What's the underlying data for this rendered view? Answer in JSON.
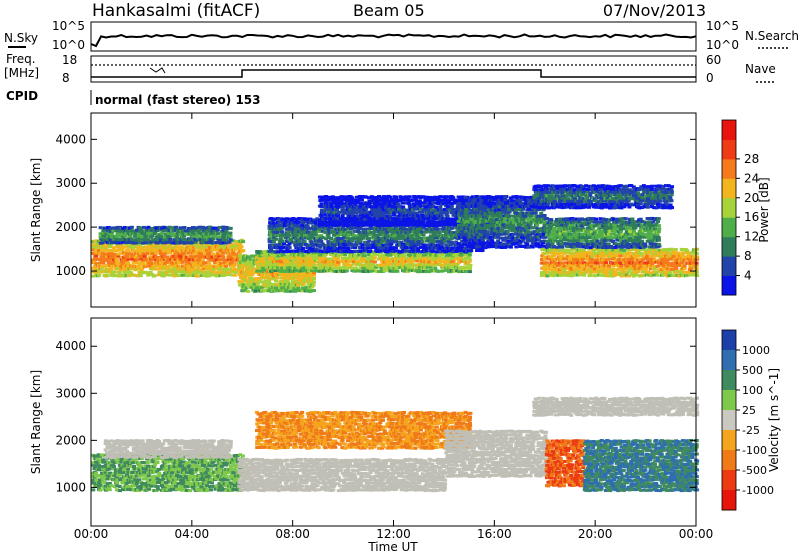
{
  "header": {
    "station": "Hankasalmi (fitACF)",
    "beam": "Beam 05",
    "date": "07/Nov/2013"
  },
  "noise_panel": {
    "left_label": "N.Sky",
    "right_label": "N.Search",
    "left_ticks": [
      "10^5",
      "10^0"
    ],
    "right_ticks": [
      "10^5",
      "10^0"
    ]
  },
  "freq_panel": {
    "left_label_1": "Freq.",
    "left_label_2": "[MHz]",
    "right_label": "Nave",
    "left_ticks": [
      "18",
      "8"
    ],
    "right_ticks": [
      "60",
      "0"
    ]
  },
  "cpid": {
    "label": "CPID",
    "mode": "normal (fast stereo) 153"
  },
  "colors": {
    "power_scale": [
      "#0a14e6",
      "#2244aa",
      "#2f7d5a",
      "#4fae4a",
      "#a6d23a",
      "#f2b51d",
      "#f47a1b",
      "#ef3b16",
      "#e8150f"
    ],
    "velocity_scale": [
      "#1d3fa8",
      "#2f6fb0",
      "#3f8a5e",
      "#7ec84a",
      "#c9c9c1",
      "#f5a41d",
      "#f07a18",
      "#ec3b12",
      "#e5150c"
    ],
    "ground_scatter": "#c0bfb6"
  },
  "chart_data": [
    {
      "type": "heatmap",
      "title": "Power [dB]",
      "xlabel": "Time UT",
      "ylabel": "Slant Range [km]",
      "x_ticks": [
        "00:00",
        "04:00",
        "08:00",
        "12:00",
        "16:00",
        "20:00",
        "00:00"
      ],
      "xlim_hours": [
        0,
        24
      ],
      "y_ticks": [
        1000,
        2000,
        3000,
        4000
      ],
      "ylim_km": [
        180,
        4600
      ],
      "colorbar_label": "Power [dB]",
      "colorbar_ticks": [
        4,
        8,
        12,
        16,
        20,
        24,
        28
      ],
      "bands": [
        {
          "t0": 0.0,
          "t1": 6.0,
          "r0": 850,
          "r1": 1700,
          "level": 28
        },
        {
          "t0": 0.3,
          "t1": 5.5,
          "r0": 1600,
          "r1": 2000,
          "level": 16
        },
        {
          "t0": 5.8,
          "t1": 8.8,
          "r0": 500,
          "r1": 1350,
          "level": 24
        },
        {
          "t0": 6.5,
          "t1": 15.0,
          "r0": 950,
          "r1": 1450,
          "level": 24
        },
        {
          "t0": 7.0,
          "t1": 15.5,
          "r0": 1400,
          "r1": 2200,
          "level": 12
        },
        {
          "t0": 9.0,
          "t1": 16.5,
          "r0": 2000,
          "r1": 2700,
          "level": 8
        },
        {
          "t0": 14.5,
          "t1": 18.0,
          "r0": 1500,
          "r1": 2700,
          "level": 12
        },
        {
          "t0": 17.5,
          "t1": 23.0,
          "r0": 2400,
          "r1": 2950,
          "level": 12
        },
        {
          "t0": 17.8,
          "t1": 24.0,
          "r0": 850,
          "r1": 1500,
          "level": 28
        },
        {
          "t0": 18.0,
          "t1": 22.5,
          "r0": 1500,
          "r1": 2200,
          "level": 16
        }
      ]
    },
    {
      "type": "heatmap",
      "title": "Velocity [m s^-1]",
      "xlabel": "Time UT",
      "ylabel": "Slant Range [km]",
      "x_ticks": [
        "00:00",
        "04:00",
        "08:00",
        "12:00",
        "16:00",
        "20:00",
        "00:00"
      ],
      "xlim_hours": [
        0,
        24
      ],
      "y_ticks": [
        1000,
        2000,
        3000,
        4000
      ],
      "ylim_km": [
        180,
        4600
      ],
      "colorbar_label": "Velocity [m s^-1]",
      "colorbar_ticks": [
        "1000",
        "500",
        "100",
        "25",
        "-25",
        "-100",
        "-500",
        "-1000"
      ],
      "bands": [
        {
          "t0": 0.0,
          "t1": 6.0,
          "r0": 900,
          "r1": 1700,
          "level": 100
        },
        {
          "t0": 0.5,
          "t1": 5.5,
          "r0": 1600,
          "r1": 2000,
          "level": 0
        },
        {
          "t0": 5.8,
          "t1": 14.0,
          "r0": 900,
          "r1": 1600,
          "level": 0
        },
        {
          "t0": 6.5,
          "t1": 15.0,
          "r0": 1800,
          "r1": 2600,
          "level": -100
        },
        {
          "t0": 14.0,
          "t1": 18.0,
          "r0": 1200,
          "r1": 2200,
          "level": 0
        },
        {
          "t0": 17.5,
          "t1": 24.0,
          "r0": 2500,
          "r1": 2900,
          "level": 0
        },
        {
          "t0": 18.0,
          "t1": 19.5,
          "r0": 1000,
          "r1": 2000,
          "level": -500
        },
        {
          "t0": 19.5,
          "t1": 24.0,
          "r0": 900,
          "r1": 2000,
          "level": 500
        }
      ]
    }
  ]
}
